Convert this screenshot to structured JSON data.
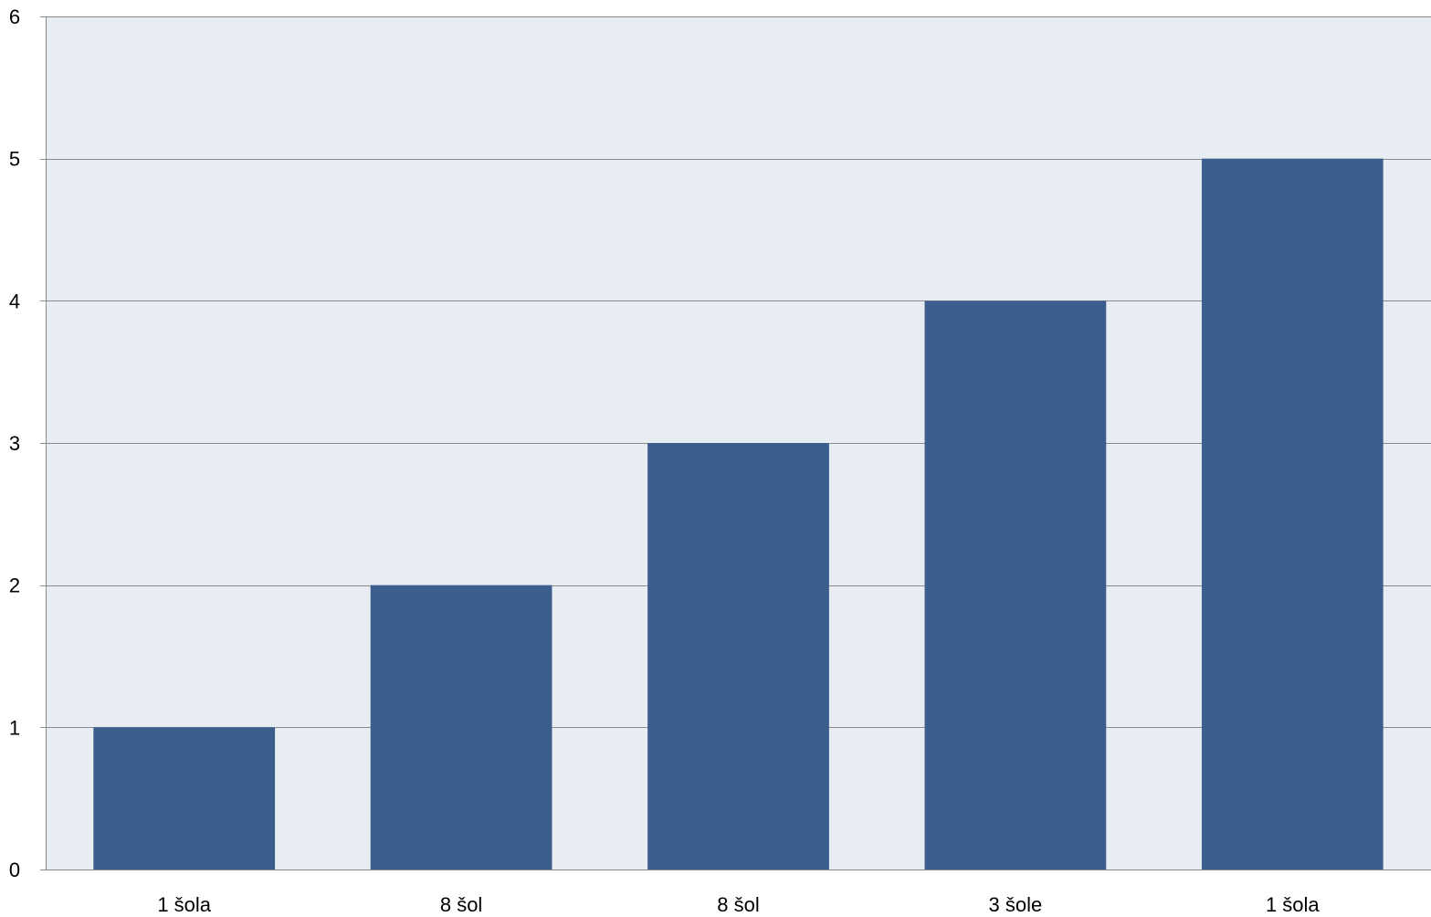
{
  "chart_data": {
    "type": "bar",
    "title": "",
    "xlabel": "",
    "ylabel": "",
    "categories": [
      "1 šola",
      "8 šol",
      "8 šol",
      "3 šole",
      "1 šola"
    ],
    "values": [
      1,
      2,
      3,
      4,
      5
    ],
    "ylim": [
      0,
      6
    ],
    "yticks": [
      0,
      1,
      2,
      3,
      4,
      5,
      6
    ],
    "grid": true,
    "legend": "none",
    "colors": {
      "bar": "#3b5e8c",
      "plot_background": "#e8ecf3",
      "gridline": "#8a8a8a",
      "axis": "#8a8a8a"
    }
  }
}
